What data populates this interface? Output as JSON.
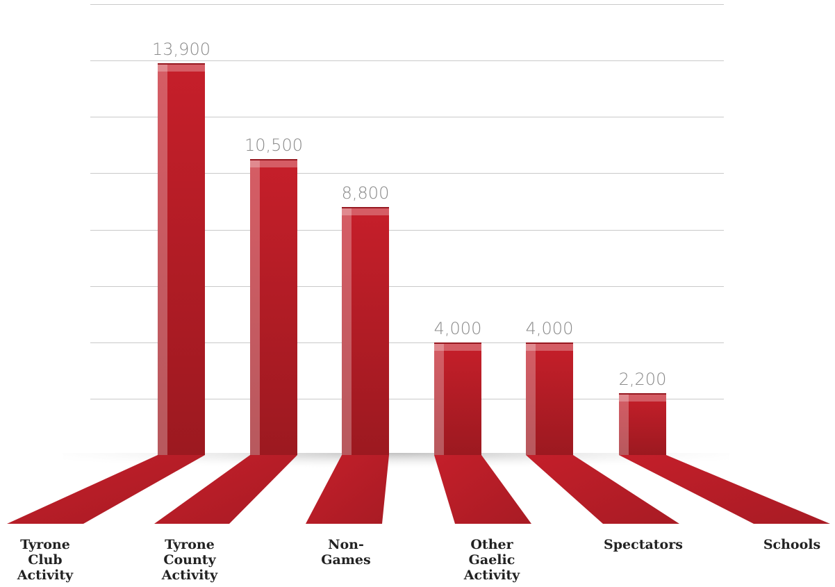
{
  "colors": {
    "bar": "#b81d28",
    "bar_dark": "#961820",
    "bar_light": "#d0222e",
    "gridline": "#c9c9c9",
    "value_text": "#8a8a8a",
    "category_text": "#222222"
  },
  "chart_data": {
    "type": "bar",
    "title": "",
    "xlabel": "",
    "ylabel": "",
    "ylim": [
      0,
      16000
    ],
    "grid": true,
    "categories": [
      [
        "Tyrone",
        "Club",
        "Activity"
      ],
      [
        "Tyrone",
        "County",
        "Activity"
      ],
      [
        "Non-",
        "Games"
      ],
      [
        "Other",
        "Gaelic",
        "Activity"
      ],
      [
        "Spectators"
      ],
      [
        "Schools"
      ]
    ],
    "values": [
      13900,
      10500,
      8800,
      4000,
      4000,
      2200
    ],
    "value_labels": [
      "13,900",
      "10,500",
      "8,800",
      "4,000",
      "4,000",
      "2,200"
    ]
  }
}
